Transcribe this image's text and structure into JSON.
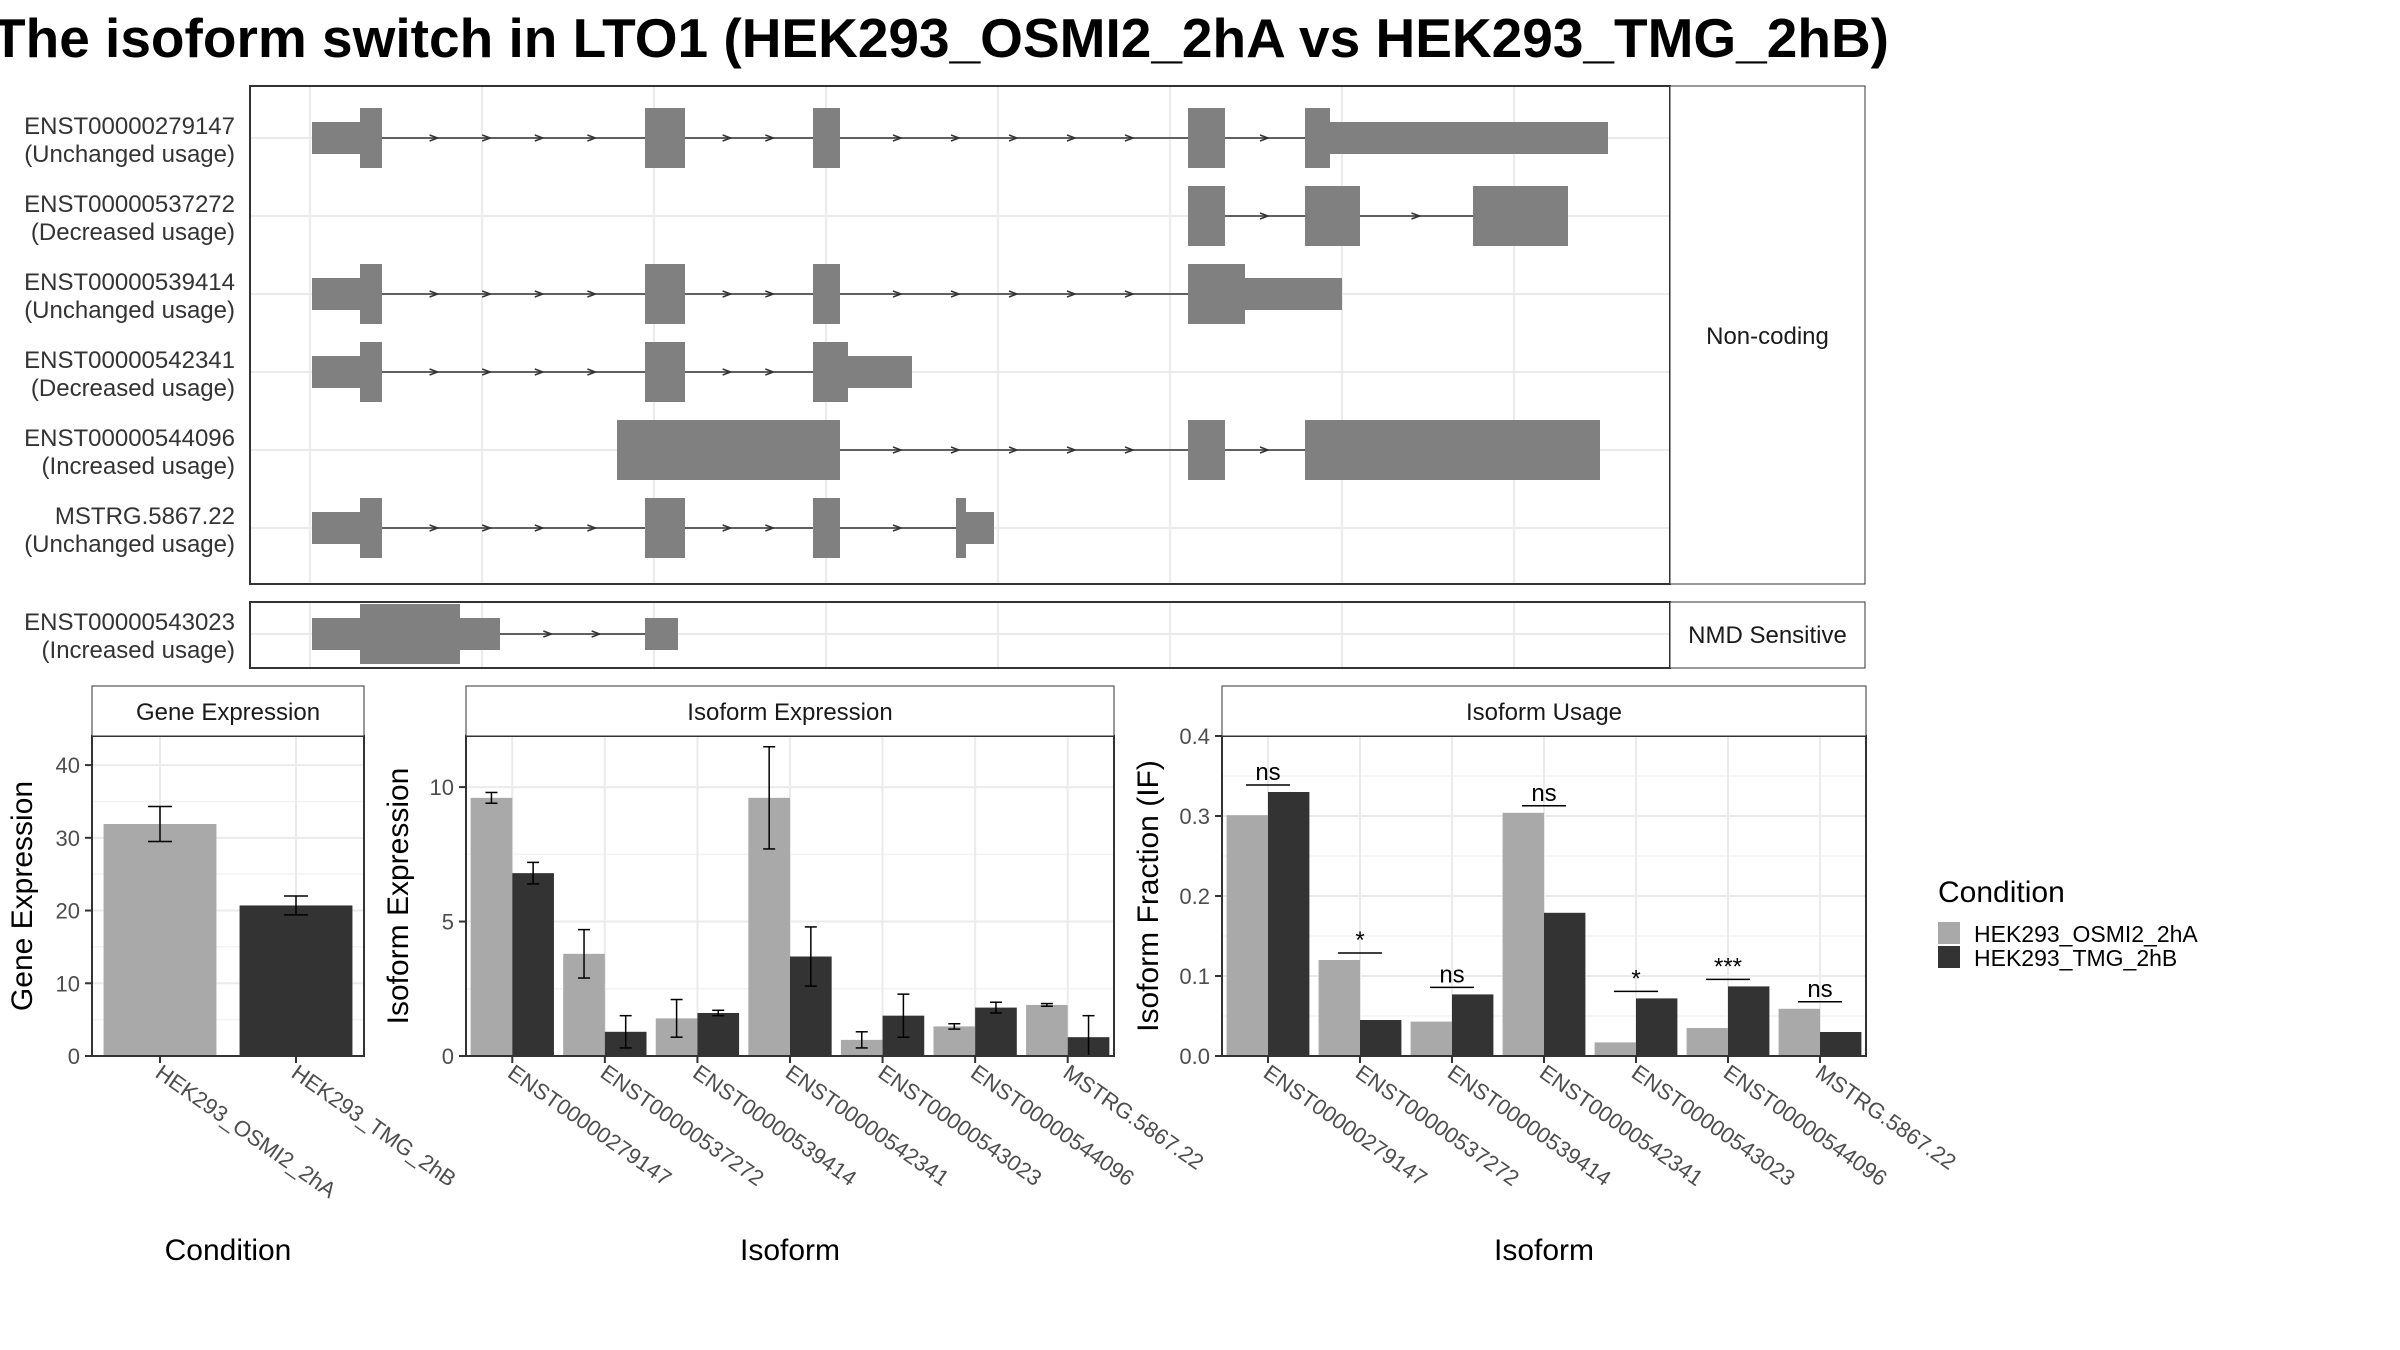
{
  "title": "The isoform switch in LTO1 (HEK293_OSMI2_2hA vs HEK293_TMG_2hB)",
  "colors": {
    "condition_a": "#a9a9a9",
    "condition_b": "#333333",
    "exon": "#808080",
    "grid": "#ebebeb",
    "panel_border": "#333333",
    "strip_bg": "#ffffff"
  },
  "legend": {
    "title": "Condition",
    "items": [
      "HEK293_OSMI2_2hA",
      "HEK293_TMG_2hB"
    ]
  },
  "transcript_panel": {
    "groups": [
      {
        "label": "Non-coding",
        "transcripts": [
          {
            "id": "ENST00000279147",
            "usage": "(Unchanged usage)"
          },
          {
            "id": "ENST00000537272",
            "usage": "(Decreased usage)"
          },
          {
            "id": "ENST00000539414",
            "usage": "(Unchanged usage)"
          },
          {
            "id": "ENST00000542341",
            "usage": "(Decreased usage)"
          },
          {
            "id": "ENST00000544096",
            "usage": "(Increased usage)"
          },
          {
            "id": "MSTRG.5867.22",
            "usage": "(Unchanged usage)"
          }
        ]
      },
      {
        "label": "NMD Sensitive",
        "transcripts": [
          {
            "id": "ENST00000543023",
            "usage": "(Increased usage)"
          }
        ]
      }
    ]
  },
  "chart_data": [
    {
      "type": "bar",
      "title": "Gene Expression",
      "xlabel": "Condition",
      "ylabel": "Gene Expression",
      "ylim": [
        0,
        44
      ],
      "yticks": [
        0,
        10,
        20,
        30,
        40
      ],
      "categories": [
        "HEK293_OSMI2_2hA",
        "HEK293_TMG_2hB"
      ],
      "values": [
        31.9,
        20.7
      ],
      "error": [
        2.4,
        1.3
      ],
      "grid": true
    },
    {
      "type": "bar",
      "title": "Isoform Expression",
      "xlabel": "Isoform",
      "ylabel": "Isoform Expression",
      "ylim": [
        0,
        11.9
      ],
      "yticks": [
        0,
        5,
        10
      ],
      "categories": [
        "ENST00000279147",
        "ENST00000537272",
        "ENST00000539414",
        "ENST00000542341",
        "ENST00000543023",
        "ENST00000544096",
        "MSTRG.5867.22"
      ],
      "series": [
        {
          "name": "HEK293_OSMI2_2hA",
          "values": [
            9.6,
            3.8,
            1.4,
            9.6,
            0.6,
            1.1,
            1.9
          ],
          "error": [
            0.2,
            0.9,
            0.7,
            1.9,
            0.3,
            0.1,
            0.05
          ]
        },
        {
          "name": "HEK293_TMG_2hB",
          "values": [
            6.8,
            0.9,
            1.6,
            3.7,
            1.5,
            1.8,
            0.7
          ],
          "error": [
            0.4,
            0.6,
            0.1,
            1.1,
            0.8,
            0.2,
            0.8
          ]
        }
      ],
      "grid": true
    },
    {
      "type": "bar",
      "title": "Isoform Usage",
      "xlabel": "Isoform",
      "ylabel": "Isoform Fraction (IF)",
      "ylim": [
        0,
        0.4
      ],
      "yticks": [
        "0.0",
        "0.1",
        "0.2",
        "0.3",
        "0.4"
      ],
      "categories": [
        "ENST00000279147",
        "ENST00000537272",
        "ENST00000539414",
        "ENST00000542341",
        "ENST00000543023",
        "ENST00000544096",
        "MSTRG.5867.22"
      ],
      "series": [
        {
          "name": "HEK293_OSMI2_2hA",
          "values": [
            0.301,
            0.12,
            0.043,
            0.304,
            0.017,
            0.035,
            0.059
          ]
        },
        {
          "name": "HEK293_TMG_2hB",
          "values": [
            0.33,
            0.045,
            0.077,
            0.179,
            0.072,
            0.087,
            0.03
          ]
        }
      ],
      "significance": [
        "ns",
        "*",
        "ns",
        "ns",
        "*",
        "***",
        "ns"
      ],
      "grid": true
    }
  ]
}
